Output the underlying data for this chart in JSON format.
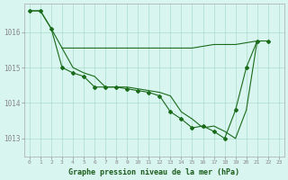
{
  "title": "Graphe pression niveau de la mer (hPa)",
  "bg_color": "#d8f5f0",
  "grid_color": "#aaddcc",
  "line_color": "#1a6b1a",
  "x_ticks": [
    0,
    1,
    2,
    3,
    4,
    5,
    6,
    7,
    8,
    9,
    10,
    11,
    12,
    13,
    14,
    15,
    16,
    17,
    18,
    19,
    20,
    21,
    22,
    23
  ],
  "ylim": [
    1012.5,
    1016.8
  ],
  "yticks": [
    1013,
    1014,
    1015,
    1016
  ],
  "env_x": [
    0,
    1,
    2,
    3,
    4,
    5,
    6,
    7,
    8,
    9,
    10,
    11,
    12,
    13,
    14,
    15,
    16,
    17,
    18,
    19,
    20,
    21
  ],
  "env_y": [
    1016.6,
    1016.6,
    1016.1,
    1015.55,
    1015.55,
    1015.55,
    1015.55,
    1015.55,
    1015.55,
    1015.55,
    1015.55,
    1015.55,
    1015.55,
    1015.55,
    1015.55,
    1015.55,
    1015.6,
    1015.65,
    1015.65,
    1015.65,
    1015.7,
    1015.75
  ],
  "main_x": [
    0,
    1,
    2,
    3,
    4,
    5,
    6,
    7,
    8,
    9,
    10,
    11,
    12,
    13,
    14,
    15,
    16,
    17,
    18,
    19,
    20,
    21,
    22
  ],
  "main_y": [
    1016.6,
    1016.6,
    1016.1,
    1015.0,
    1014.85,
    1014.75,
    1014.45,
    1014.45,
    1014.45,
    1014.4,
    1014.35,
    1014.3,
    1014.2,
    1013.75,
    1013.55,
    1013.3,
    1013.35,
    1013.2,
    1013.0,
    1013.8,
    1015.0,
    1015.75,
    1015.75
  ],
  "third_x": [
    3,
    4,
    5,
    6,
    7,
    8,
    9,
    10,
    11,
    12,
    13,
    14,
    15,
    16,
    17,
    18,
    19,
    20,
    21
  ],
  "third_y": [
    1015.55,
    1015.0,
    1014.85,
    1014.75,
    1014.45,
    1014.45,
    1014.45,
    1014.4,
    1014.35,
    1014.3,
    1014.2,
    1013.75,
    1013.55,
    1013.3,
    1013.35,
    1013.2,
    1013.0,
    1013.8,
    1015.75
  ]
}
